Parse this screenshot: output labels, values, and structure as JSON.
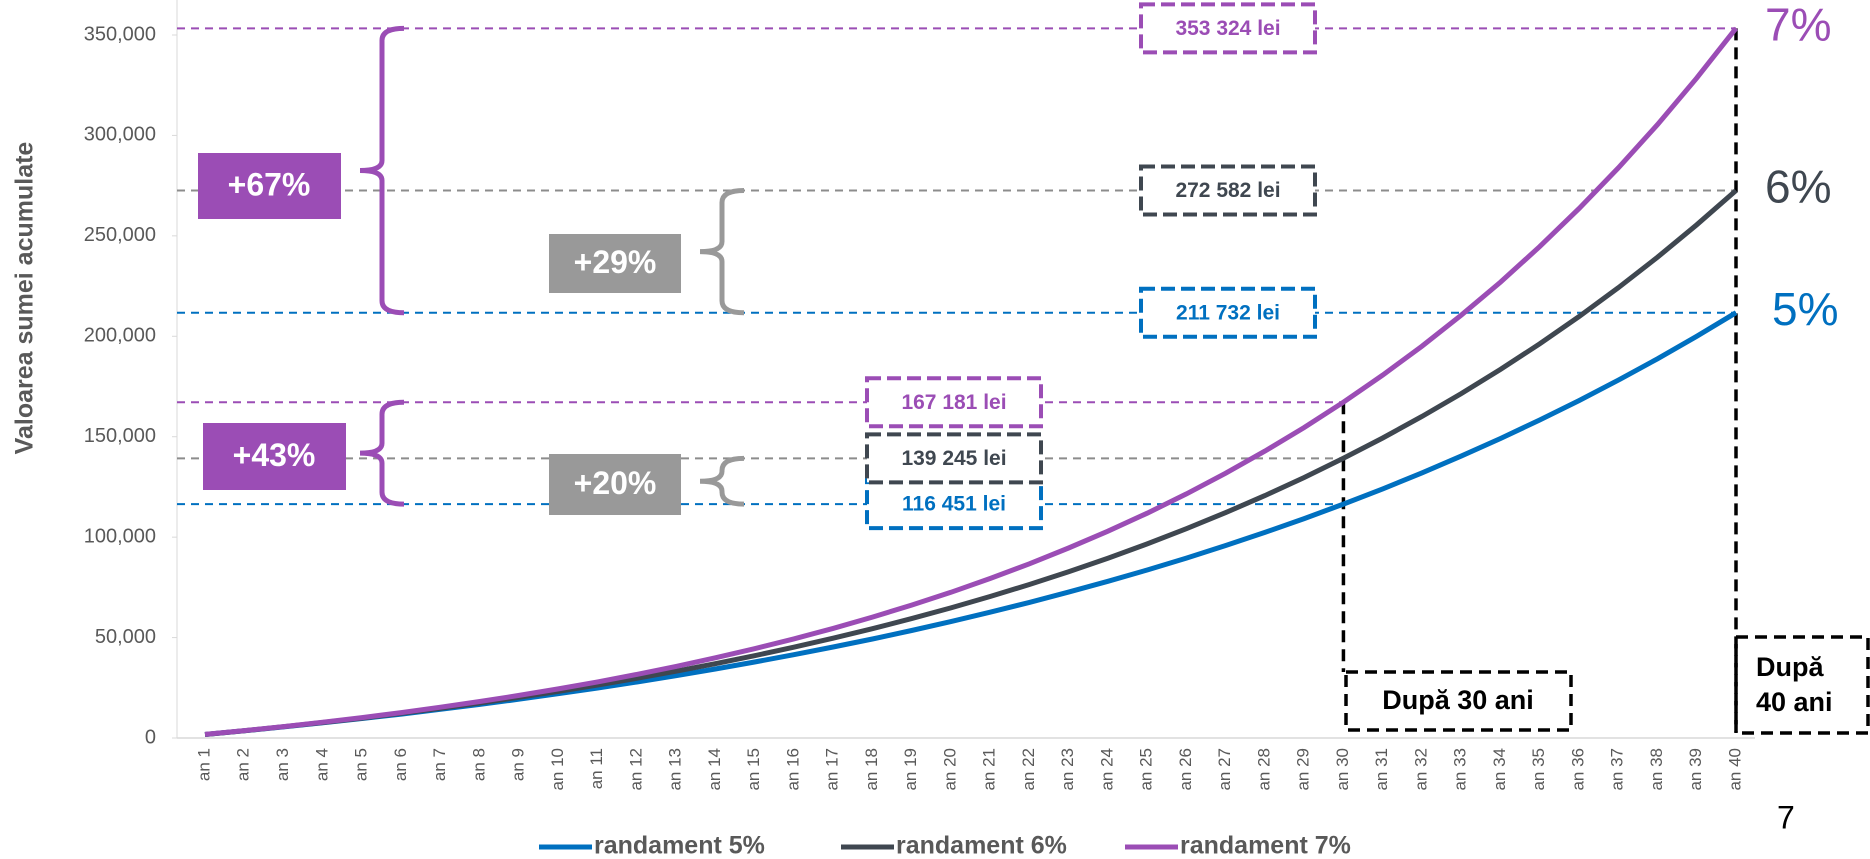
{
  "chart_data": {
    "type": "line",
    "y_label": "Valoarea sumei acumulate",
    "page_number": "7",
    "categories": [
      "an 1",
      "an 2",
      "an 3",
      "an 4",
      "an 5",
      "an 6",
      "an 7",
      "an 8",
      "an 9",
      "an 10",
      "an 11",
      "an 12",
      "an 13",
      "an 14",
      "an 15",
      "an 16",
      "an 17",
      "an 18",
      "an 19",
      "an 20",
      "an 21",
      "an 22",
      "an 23",
      "an 24",
      "an 25",
      "an 26",
      "an 27",
      "an 28",
      "an 29",
      "an 30",
      "an 31",
      "an 32",
      "an 33",
      "an 34",
      "an 35",
      "an 36",
      "an 37",
      "an 38",
      "an 39",
      "an 40"
    ],
    "ylim": [
      0,
      350000
    ],
    "yticks": [
      0,
      {
        "value": 50000,
        "label": "50,000"
      },
      {
        "value": 100000,
        "label": "100,000"
      },
      {
        "value": 150000,
        "label": "150,000"
      },
      {
        "value": 200000,
        "label": "200,000"
      },
      {
        "value": 250000,
        "label": "250,000"
      },
      {
        "value": 300000,
        "label": "300,000"
      },
      {
        "value": 350000,
        "label": "350,000"
      }
    ],
    "series": [
      {
        "name": "randament 5%",
        "color": "#0070c0",
        "rate_label": "5%",
        "label_30": "116 451 lei",
        "label_40": "211 732 lei",
        "values": [
          1753,
          3593,
          5526,
          7555,
          9685,
          11922,
          14271,
          16737,
          19327,
          22046,
          24901,
          27899,
          31046,
          34352,
          37822,
          41466,
          45292,
          49309,
          53527,
          57956,
          62607,
          67490,
          72617,
          78001,
          83654,
          89589,
          95822,
          102365,
          109236,
          116451,
          124027,
          131981,
          140332,
          149101,
          158310,
          167978,
          178129,
          188787,
          199980,
          211732
        ]
      },
      {
        "name": "randament 6%",
        "color": "#3f4750",
        "rate_label": "6%",
        "label_30": "139 245 lei",
        "label_40": "272 582 lei",
        "values": [
          1761,
          3628,
          5607,
          7705,
          9929,
          12286,
          14784,
          17432,
          20240,
          23215,
          26370,
          29713,
          33257,
          37014,
          40996,
          45217,
          49692,
          54434,
          59462,
          64790,
          70439,
          76427,
          82774,
          89503,
          96634,
          104192,
          112205,
          120700,
          129703,
          139245,
          149362,
          160084,
          171450,
          183499,
          196271,
          209808,
          224159,
          239370,
          255492,
          272582
        ]
      },
      {
        "name": "randament 7%",
        "color": "#9b4db5",
        "rate_label": "7%",
        "label_30": "167 181 lei",
        "label_40": "353 324 lei",
        "values": [
          1770,
          3664,
          5690,
          7858,
          10178,
          12660,
          15316,
          18159,
          21200,
          24453,
          27935,
          31660,
          35646,
          39912,
          44476,
          49359,
          54584,
          60174,
          66156,
          72557,
          79406,
          86733,
          94575,
          102965,
          111943,
          121549,
          131827,
          142825,
          154592,
          167181,
          180656,
          195073,
          210497,
          227001,
          244662,
          263558,
          283777,
          305412,
          328558,
          353324
        ]
      }
    ],
    "growth_30": [
      "+20%",
      "+43%"
    ],
    "growth_40": [
      "+29%",
      "+67%"
    ],
    "growth_colors": [
      "#999999",
      "#9b4db5"
    ],
    "period_30": "După 30 ani",
    "period_40": [
      "După",
      "40 ani"
    ]
  }
}
